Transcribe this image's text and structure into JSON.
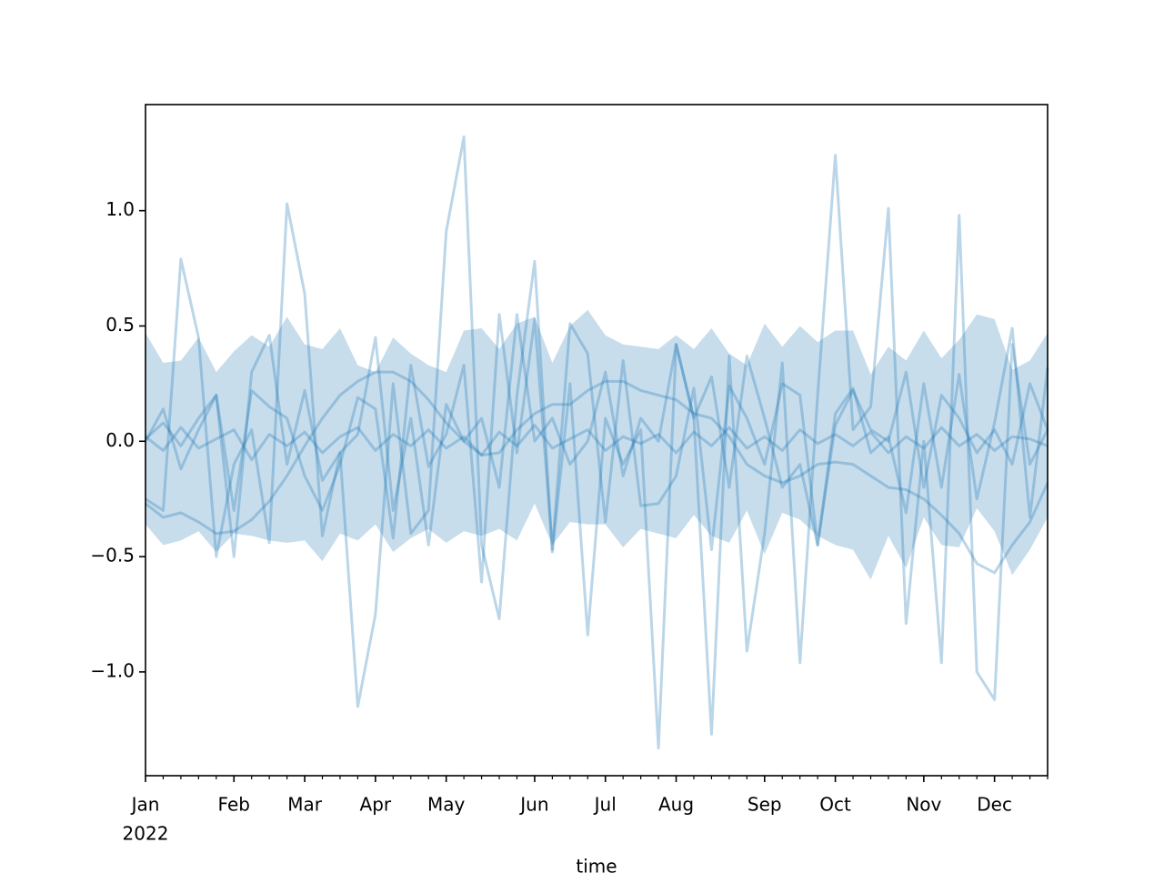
{
  "chart_data": {
    "type": "line",
    "x_label": "time",
    "x_sublabel": "2022",
    "categories": [
      "Jan",
      null,
      null,
      null,
      null,
      "Feb",
      null,
      null,
      null,
      "Mar",
      null,
      null,
      null,
      "Apr",
      null,
      null,
      null,
      "May",
      null,
      null,
      null,
      null,
      "Jun",
      null,
      null,
      null,
      "Jul",
      null,
      null,
      null,
      "Aug",
      null,
      null,
      null,
      null,
      "Sep",
      null,
      null,
      null,
      "Oct",
      null,
      null,
      null,
      null,
      "Nov",
      null,
      null,
      null,
      "Dec",
      null,
      null,
      null
    ],
    "ylim": [
      -1.45,
      1.46
    ],
    "yticks": [
      {
        "value": -1,
        "label": "−1.0"
      },
      {
        "value": -0.5,
        "label": "−0.5"
      },
      {
        "value": 0,
        "label": "0.0"
      },
      0.5,
      {
        "value": 1,
        "label": "1.0"
      }
    ],
    "band": {
      "color": "#1f77b4",
      "upper": [
        0.47,
        0.34,
        0.35,
        0.45,
        0.3,
        0.39,
        0.46,
        0.41,
        0.54,
        0.42,
        0.4,
        0.49,
        0.33,
        0.3,
        0.45,
        0.38,
        0.33,
        0.3,
        0.48,
        0.49,
        0.4,
        0.51,
        0.54,
        0.34,
        0.5,
        0.57,
        0.46,
        0.42,
        0.41,
        0.4,
        0.46,
        0.4,
        0.49,
        0.38,
        0.33,
        0.51,
        0.41,
        0.5,
        0.43,
        0.48,
        0.48,
        0.29,
        0.41,
        0.35,
        0.48,
        0.36,
        0.44,
        0.55,
        0.53,
        0.31,
        0.35,
        0.47
      ],
      "lower": [
        -0.36,
        -0.45,
        -0.43,
        -0.39,
        -0.48,
        -0.4,
        -0.41,
        -0.43,
        -0.44,
        -0.43,
        -0.52,
        -0.4,
        -0.43,
        -0.36,
        -0.48,
        -0.42,
        -0.38,
        -0.44,
        -0.39,
        -0.41,
        -0.38,
        -0.43,
        -0.27,
        -0.45,
        -0.35,
        -0.36,
        -0.36,
        -0.46,
        -0.38,
        -0.4,
        -0.42,
        -0.32,
        -0.41,
        -0.44,
        -0.3,
        -0.49,
        -0.31,
        -0.34,
        -0.41,
        -0.45,
        -0.47,
        -0.6,
        -0.41,
        -0.55,
        -0.33,
        -0.45,
        -0.46,
        -0.29,
        -0.39,
        -0.58,
        -0.47,
        -0.33
      ]
    },
    "series": [
      {
        "color": "#1f77b4",
        "values": [
          -0.25,
          -0.3,
          0.79,
          0.45,
          -0.5,
          -0.1,
          0.05,
          -0.44,
          1.03,
          0.64,
          -0.41,
          -0.05,
          -1.15,
          -0.75,
          0.25,
          -0.4,
          -0.3,
          0.91,
          1.32,
          -0.45,
          -0.77,
          0.2,
          0.78,
          -0.48,
          0.25,
          -0.84,
          0.1,
          -0.1,
          0.05,
          -1.33,
          0.42,
          0.1,
          -1.27,
          0.37,
          -0.91,
          -0.4,
          0.34,
          -0.96,
          0.2,
          1.24,
          0.05,
          0.15,
          1.01,
          -0.79,
          0.0,
          -0.96,
          0.98,
          -1.0,
          -1.12,
          0.42,
          -0.1,
          0.05
        ]
      },
      {
        "color": "#1f77b4",
        "values": [
          0.0,
          0.14,
          -0.12,
          0.05,
          0.2,
          -0.3,
          0.22,
          0.15,
          0.1,
          -0.15,
          -0.3,
          -0.1,
          0.19,
          0.14,
          -0.42,
          0.33,
          -0.11,
          0.03,
          0.33,
          -0.61,
          0.55,
          -0.05,
          0.53,
          -0.47,
          0.51,
          0.38,
          -0.35,
          0.35,
          -0.28,
          -0.27,
          -0.15,
          0.23,
          -0.47,
          0.24,
          0.1,
          -0.1,
          0.25,
          0.2,
          -0.45,
          0.12,
          0.23,
          -0.05,
          0.02,
          -0.31,
          0.25,
          -0.2,
          0.29,
          -0.25,
          0.08,
          0.49,
          -0.33,
          0.32
        ]
      },
      {
        "color": "#1f77b4",
        "values": [
          -0.27,
          -0.33,
          -0.31,
          -0.35,
          -0.4,
          -0.39,
          -0.34,
          -0.26,
          -0.15,
          -0.02,
          0.1,
          0.2,
          0.26,
          0.3,
          0.3,
          0.26,
          0.18,
          0.08,
          0.0,
          -0.06,
          -0.05,
          0.05,
          0.12,
          0.16,
          0.16,
          0.22,
          0.26,
          0.26,
          0.22,
          0.2,
          0.18,
          0.12,
          0.1,
          0.02,
          -0.1,
          -0.15,
          -0.18,
          -0.15,
          -0.1,
          -0.09,
          -0.1,
          -0.15,
          -0.2,
          -0.21,
          -0.25,
          -0.32,
          -0.4,
          -0.53,
          -0.57,
          -0.45,
          -0.35,
          -0.18
        ]
      },
      {
        "color": "#1f77b4",
        "values": [
          0.02,
          -0.04,
          0.06,
          -0.03,
          0.01,
          0.05,
          -0.08,
          0.03,
          -0.02,
          0.04,
          -0.05,
          0.02,
          0.06,
          -0.04,
          0.03,
          -0.02,
          0.05,
          -0.03,
          0.02,
          -0.06,
          0.04,
          -0.02,
          0.07,
          -0.03,
          0.01,
          0.05,
          -0.04,
          0.02,
          -0.01,
          0.03,
          -0.05,
          0.04,
          -0.02,
          0.06,
          -0.03,
          0.02,
          -0.04,
          0.05,
          -0.01,
          0.03,
          -0.02,
          0.04,
          -0.05,
          0.02,
          -0.03,
          0.06,
          -0.02,
          0.03,
          -0.04,
          0.02,
          0.01,
          -0.02
        ]
      },
      {
        "color": "#1f77b4",
        "values": [
          0.01,
          0.08,
          -0.02,
          0.1,
          0.2,
          -0.5,
          0.3,
          0.46,
          -0.1,
          0.22,
          -0.17,
          -0.05,
          0.03,
          0.45,
          -0.3,
          0.1,
          -0.45,
          0.16,
          0.0,
          0.1,
          -0.2,
          0.55,
          0.0,
          0.1,
          -0.1,
          0.0,
          0.3,
          -0.15,
          0.1,
          0.0,
          0.42,
          0.1,
          0.28,
          -0.2,
          0.37,
          0.1,
          -0.2,
          -0.1,
          -0.45,
          0.07,
          0.22,
          0.05,
          0.0,
          0.3,
          -0.2,
          0.2,
          0.1,
          -0.05,
          0.05,
          -0.1,
          0.25,
          0.05
        ]
      }
    ]
  }
}
